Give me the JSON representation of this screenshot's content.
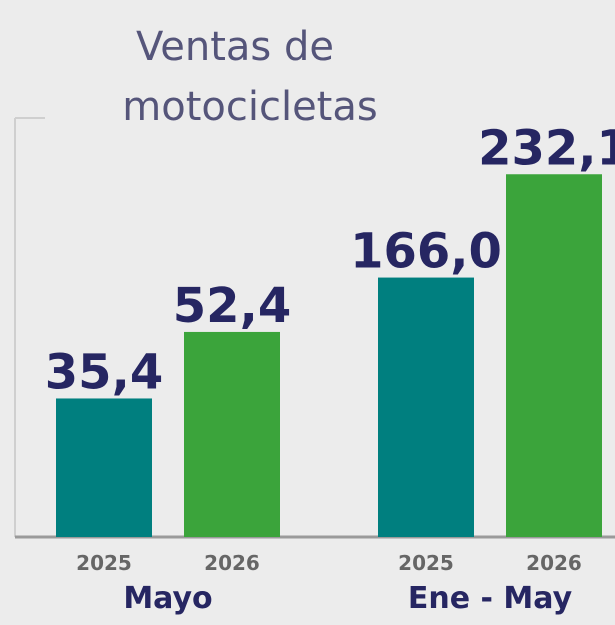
{
  "title": [
    "Ventas de",
    "motocicletas"
  ],
  "chart_data": [
    {
      "type": "bar",
      "label": "Mayo",
      "categories": [
        "2025",
        "2026"
      ],
      "values": [
        35.4,
        52.4
      ],
      "value_labels": [
        "35,4",
        "52,4"
      ],
      "colors": [
        "#007f7f",
        "#3ba43b"
      ],
      "ylim": [
        0,
        127
      ]
    },
    {
      "type": "bar",
      "label": "Ene - May",
      "categories": [
        "2025",
        "2026"
      ],
      "values": [
        166.0,
        232.1
      ],
      "value_labels": [
        "166,0",
        "232,1"
      ],
      "colors": [
        "#007f7f",
        "#3ba43b"
      ],
      "ylim": [
        0,
        318
      ]
    }
  ]
}
